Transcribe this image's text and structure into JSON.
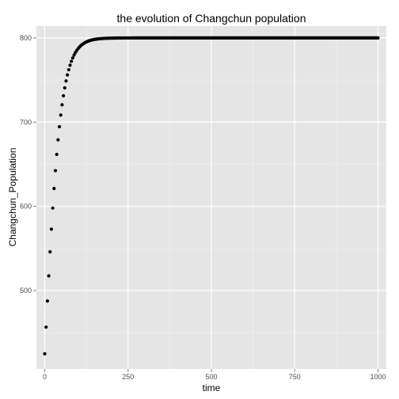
{
  "chart_data": {
    "type": "scatter",
    "title": "the evolution of Changchun population",
    "xlabel": "time",
    "ylabel": "Changchun_Population",
    "xlim": [
      -25,
      1025
    ],
    "ylim": [
      407,
      814
    ],
    "x_ticks": [
      0,
      250,
      500,
      750,
      1000
    ],
    "y_ticks": [
      500,
      600,
      700,
      800
    ],
    "x_tick_labels": [
      "0",
      "250",
      "500",
      "750",
      "1000"
    ],
    "y_tick_labels": [
      "500",
      "600",
      "700",
      "800"
    ],
    "grid": true,
    "legend": "none",
    "model": {
      "kind": "logistic",
      "description": "Points follow logistic growth toward the carrying capacity",
      "initial_value": 425,
      "carrying_capacity": 800,
      "growth_rate": 0.04,
      "x_start": 0,
      "x_end": 1000,
      "x_step": 4
    },
    "sample_points": [
      {
        "x": 0,
        "y": 425
      },
      {
        "x": 20,
        "y": 600
      },
      {
        "x": 40,
        "y": 708
      },
      {
        "x": 60,
        "y": 760
      },
      {
        "x": 100,
        "y": 793
      },
      {
        "x": 150,
        "y": 799
      },
      {
        "x": 250,
        "y": 800
      },
      {
        "x": 1000,
        "y": 800
      }
    ]
  },
  "colors": {
    "panel_background": "#e5e5e5",
    "major_grid": "#ffffff",
    "minor_grid": "#f2f2f2",
    "point": "#000000"
  }
}
